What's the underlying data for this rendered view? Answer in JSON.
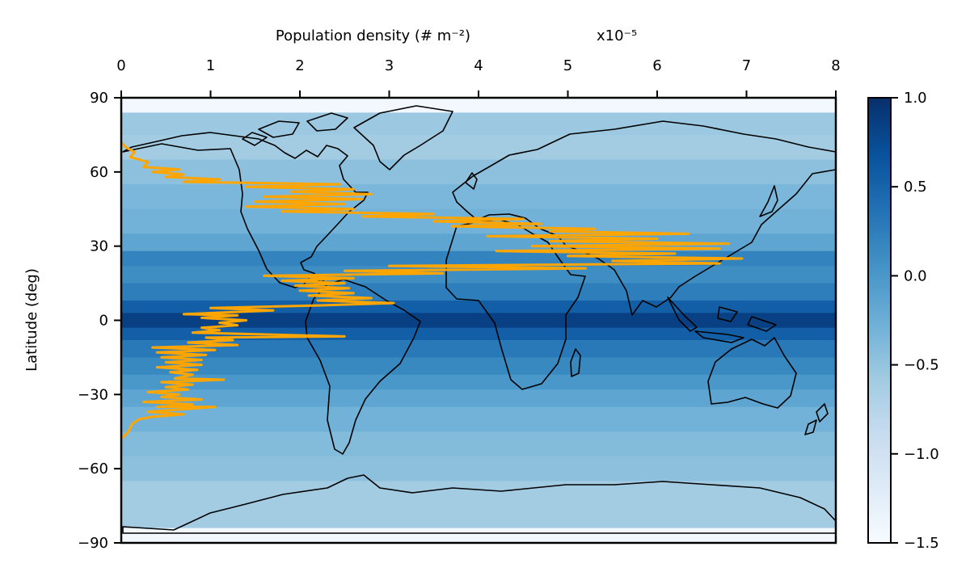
{
  "chart_data": {
    "type": "line",
    "title": "",
    "xlabel": "Population density (# m⁻²)",
    "x_scale_label": "x10⁻⁵",
    "ylabel": "Latitude (deg)",
    "xlim": [
      0,
      8
    ],
    "ylim": [
      -90,
      90
    ],
    "x_ticks": [
      "0",
      "1",
      "2",
      "3",
      "4",
      "5",
      "6",
      "7",
      "8"
    ],
    "y_ticks": [
      "90",
      "60",
      "30",
      "0",
      "−30",
      "−60",
      "−90"
    ],
    "line_color": "#ffa500",
    "background": {
      "type": "heatmap",
      "colormap": "Blues",
      "description": "latitude-banded field shown behind a world coastline map (longitude -180 to 180)",
      "lat_bands": [
        {
          "lat_from": 90,
          "lat_to": 84,
          "value": -1.45
        },
        {
          "lat_from": 84,
          "lat_to": 75,
          "value": -0.55
        },
        {
          "lat_from": 75,
          "lat_to": 65,
          "value": -0.6
        },
        {
          "lat_from": 65,
          "lat_to": 55,
          "value": -0.45
        },
        {
          "lat_from": 55,
          "lat_to": 45,
          "value": -0.35
        },
        {
          "lat_from": 45,
          "lat_to": 35,
          "value": -0.3
        },
        {
          "lat_from": 35,
          "lat_to": 28,
          "value": -0.15
        },
        {
          "lat_from": 28,
          "lat_to": 22,
          "value": 0.2
        },
        {
          "lat_from": 22,
          "lat_to": 15,
          "value": 0.1
        },
        {
          "lat_from": 15,
          "lat_to": 8,
          "value": 0.25
        },
        {
          "lat_from": 8,
          "lat_to": 3,
          "value": 0.55
        },
        {
          "lat_from": 3,
          "lat_to": -3,
          "value": 0.85
        },
        {
          "lat_from": -3,
          "lat_to": -8,
          "value": 0.55
        },
        {
          "lat_from": -8,
          "lat_to": -15,
          "value": 0.3
        },
        {
          "lat_from": -15,
          "lat_to": -22,
          "value": 0.15
        },
        {
          "lat_from": -22,
          "lat_to": -28,
          "value": 0.0
        },
        {
          "lat_from": -28,
          "lat_to": -35,
          "value": -0.15
        },
        {
          "lat_from": -35,
          "lat_to": -45,
          "value": -0.3
        },
        {
          "lat_from": -45,
          "lat_to": -55,
          "value": -0.4
        },
        {
          "lat_from": -55,
          "lat_to": -65,
          "value": -0.45
        },
        {
          "lat_from": -65,
          "lat_to": -84,
          "value": -0.6
        },
        {
          "lat_from": -84,
          "lat_to": -90,
          "value": -1.45
        }
      ]
    },
    "colorbar": {
      "range": [
        -1.5,
        1.0
      ],
      "ticks": [
        "1.0",
        "0.5",
        "0.0",
        "−0.5",
        "−1.0",
        "−1.5"
      ]
    },
    "series": [
      {
        "points": [
          [
            0.0,
            -48
          ],
          [
            0.08,
            -45
          ],
          [
            0.12,
            -42
          ],
          [
            0.2,
            -40
          ],
          [
            0.35,
            -39
          ],
          [
            0.7,
            -38
          ],
          [
            0.3,
            -37
          ],
          [
            1.05,
            -35
          ],
          [
            0.4,
            -35
          ],
          [
            0.8,
            -34
          ],
          [
            0.25,
            -33
          ],
          [
            0.9,
            -32
          ],
          [
            0.45,
            -31
          ],
          [
            0.65,
            -30
          ],
          [
            0.3,
            -29
          ],
          [
            0.75,
            -28
          ],
          [
            0.5,
            -27
          ],
          [
            0.8,
            -26
          ],
          [
            0.45,
            -25
          ],
          [
            1.15,
            -24
          ],
          [
            0.6,
            -23.5
          ],
          [
            0.8,
            -22
          ],
          [
            0.55,
            -21
          ],
          [
            0.85,
            -20
          ],
          [
            0.4,
            -19
          ],
          [
            0.9,
            -18
          ],
          [
            0.5,
            -17
          ],
          [
            0.9,
            -16
          ],
          [
            0.45,
            -15
          ],
          [
            0.95,
            -14
          ],
          [
            0.4,
            -13
          ],
          [
            1.05,
            -12
          ],
          [
            0.35,
            -11
          ],
          [
            1.3,
            -10
          ],
          [
            0.75,
            -9
          ],
          [
            1.25,
            -8
          ],
          [
            0.95,
            -7
          ],
          [
            2.5,
            -6.5
          ],
          [
            0.8,
            -5
          ],
          [
            1.1,
            -4
          ],
          [
            0.9,
            -3
          ],
          [
            1.3,
            -2
          ],
          [
            1.1,
            -1
          ],
          [
            1.4,
            0
          ],
          [
            0.9,
            1
          ],
          [
            1.3,
            2
          ],
          [
            0.7,
            2.5
          ],
          [
            1.7,
            4
          ],
          [
            1.0,
            5
          ],
          [
            2.2,
            6
          ],
          [
            3.05,
            7
          ],
          [
            2.2,
            8
          ],
          [
            2.8,
            9
          ],
          [
            2.1,
            10
          ],
          [
            2.6,
            11
          ],
          [
            2.0,
            12
          ],
          [
            2.55,
            13
          ],
          [
            1.95,
            14
          ],
          [
            2.5,
            15
          ],
          [
            1.8,
            16
          ],
          [
            2.6,
            17
          ],
          [
            1.6,
            18
          ],
          [
            3.6,
            19
          ],
          [
            2.5,
            20
          ],
          [
            5.2,
            21
          ],
          [
            3.0,
            22
          ],
          [
            6.7,
            23
          ],
          [
            5.5,
            24
          ],
          [
            6.95,
            25
          ],
          [
            5.0,
            26
          ],
          [
            6.2,
            27
          ],
          [
            4.2,
            28
          ],
          [
            6.7,
            29
          ],
          [
            4.6,
            30
          ],
          [
            6.8,
            31
          ],
          [
            4.8,
            32
          ],
          [
            6.0,
            33
          ],
          [
            4.1,
            34
          ],
          [
            6.35,
            35
          ],
          [
            4.8,
            36
          ],
          [
            5.3,
            37
          ],
          [
            3.7,
            38
          ],
          [
            4.7,
            39
          ],
          [
            3.5,
            40
          ],
          [
            4.5,
            41
          ],
          [
            2.7,
            42
          ],
          [
            3.5,
            43
          ],
          [
            1.8,
            44
          ],
          [
            2.6,
            45
          ],
          [
            1.4,
            46
          ],
          [
            2.5,
            47
          ],
          [
            1.5,
            48
          ],
          [
            2.7,
            49
          ],
          [
            1.6,
            50
          ],
          [
            2.8,
            51
          ],
          [
            1.9,
            52
          ],
          [
            2.6,
            53
          ],
          [
            1.4,
            54
          ],
          [
            2.45,
            55
          ],
          [
            0.7,
            56
          ],
          [
            1.1,
            57
          ],
          [
            0.5,
            58
          ],
          [
            0.7,
            59
          ],
          [
            0.35,
            60
          ],
          [
            0.65,
            61
          ],
          [
            0.25,
            62
          ],
          [
            0.3,
            64
          ],
          [
            0.1,
            66
          ],
          [
            0.15,
            68
          ],
          [
            0.05,
            70
          ],
          [
            0.0,
            72
          ]
        ]
      }
    ]
  }
}
